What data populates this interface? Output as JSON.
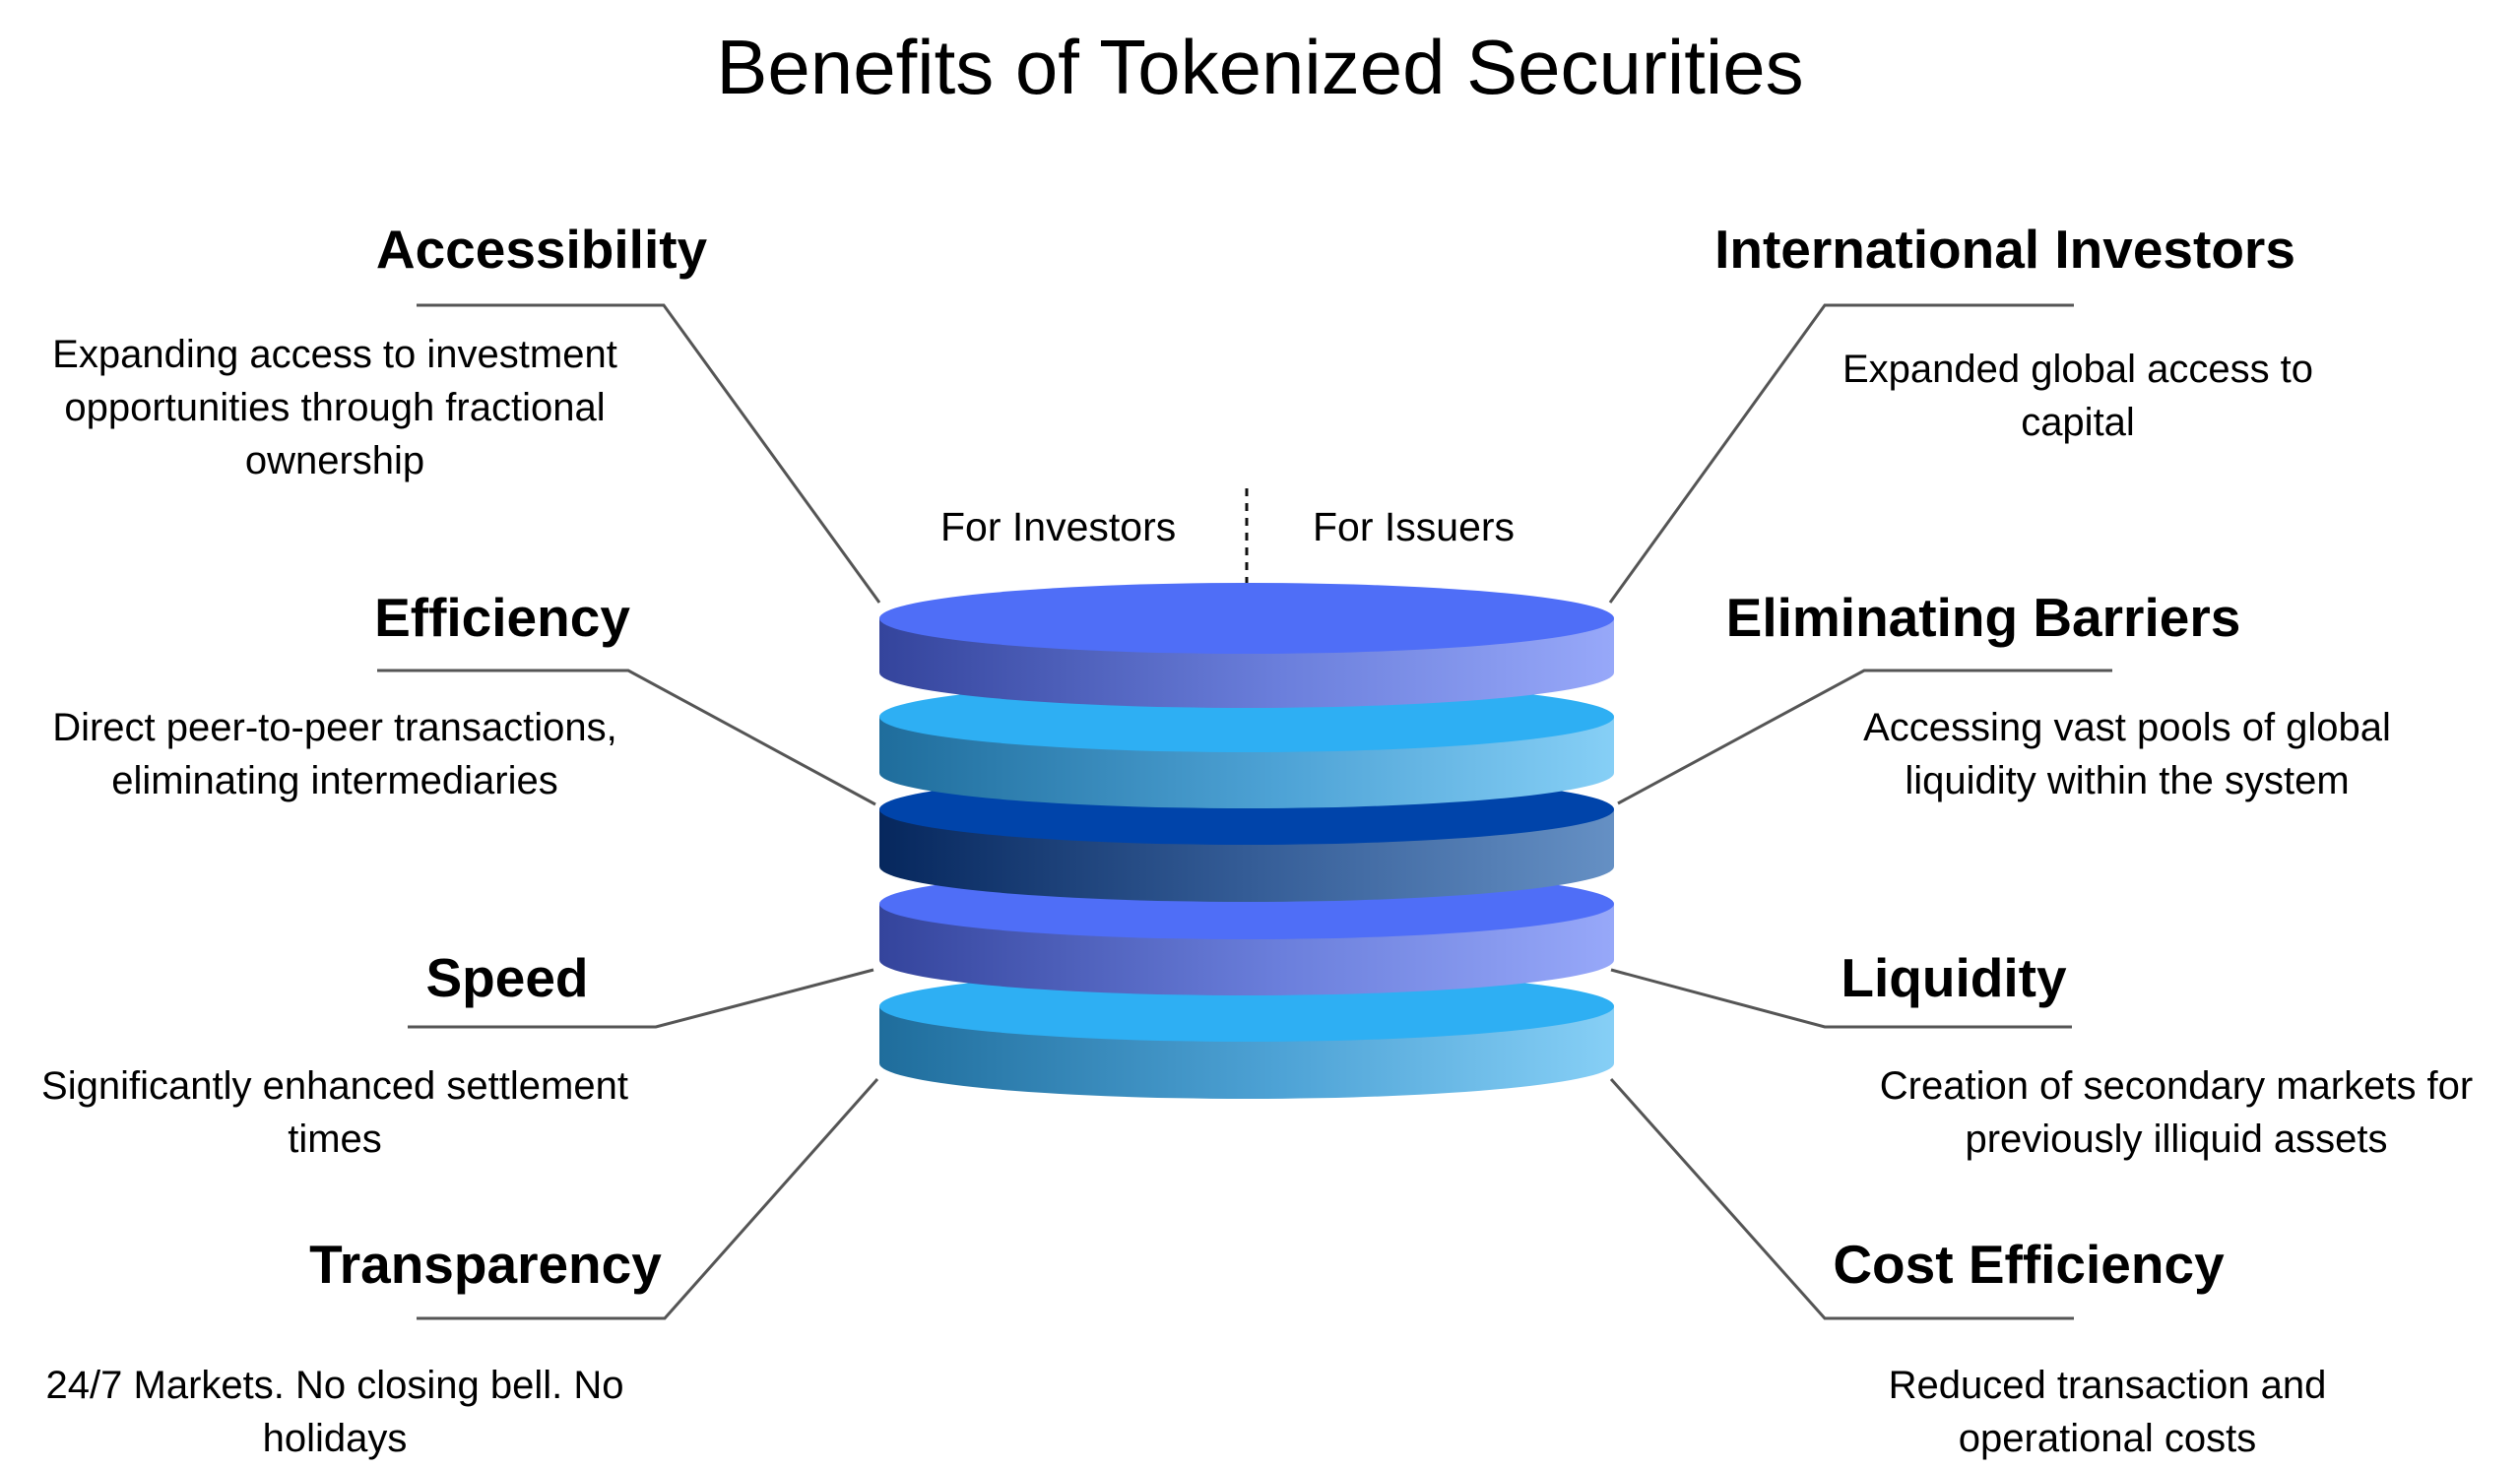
{
  "title": "Benefits of Tokenized Securities",
  "stack": {
    "left_label": "For Investors",
    "right_label": "For Issuers"
  },
  "colors": {
    "layer_blue": "#4f6ef7",
    "layer_sky": "#2eaff3",
    "layer_navy": "#0044aa",
    "connector": "#555555"
  },
  "investors": [
    {
      "title": "Accessibility",
      "description": "Expanding access to investment opportunities through fractional ownership"
    },
    {
      "title": "Efficiency",
      "description": "Direct peer-to-peer transactions, eliminating intermediaries"
    },
    {
      "title": "Speed",
      "description": "Significantly enhanced settlement times"
    },
    {
      "title": "Transparency",
      "description": "24/7 Markets. No closing bell. No holidays"
    }
  ],
  "issuers": [
    {
      "title": "International Investors",
      "description": "Expanded global access to capital"
    },
    {
      "title": "Eliminating Barriers",
      "description": "Accessing vast pools of global liquidity within the system"
    },
    {
      "title": "Liquidity",
      "description": "Creation of secondary markets for previously illiquid assets"
    },
    {
      "title": "Cost Efficiency",
      "description": "Reduced transaction and operational costs"
    }
  ]
}
